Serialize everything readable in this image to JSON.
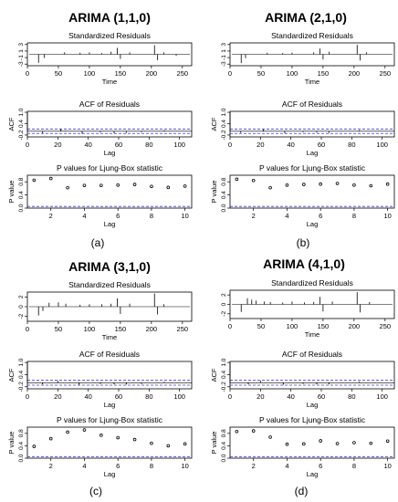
{
  "panels": [
    {
      "title": "ARIMA (1,1,0)",
      "caption": "(a)",
      "residuals": {
        "title": "Standardized Residuals",
        "xlabel": "Time",
        "xticks": [
          0,
          50,
          100,
          150,
          200,
          250
        ],
        "yticks": [
          "-3",
          "-1",
          "1",
          "3"
        ]
      },
      "acf": {
        "title": "ACF of Residuals",
        "ylabel": "ACF",
        "xlabel": "Lag",
        "xticks": [
          0,
          20,
          40,
          60,
          80,
          100
        ],
        "yticks": [
          "-0.2",
          "0.4",
          "1.0"
        ]
      },
      "ljung": {
        "title": "P values for Ljung-Box statistic",
        "ylabel": "P value",
        "xlabel": "Lag",
        "xticks": [
          2,
          4,
          6,
          8,
          10
        ],
        "yticks": [
          "0.0",
          "0.4",
          "0.8"
        ]
      }
    },
    {
      "title": "ARIMA (2,1,0)",
      "caption": "(b)",
      "residuals": {
        "title": "Standardized Residuals",
        "xlabel": "Time",
        "xticks": [
          0,
          50,
          100,
          150,
          200,
          250
        ],
        "yticks": [
          "-3",
          "-1",
          "1",
          "3"
        ]
      },
      "acf": {
        "title": "ACF of Residuals",
        "ylabel": "ACF",
        "xlabel": "Lag",
        "xticks": [
          0,
          20,
          40,
          60,
          80,
          100
        ],
        "yticks": [
          "-0.2",
          "0.4",
          "1.0"
        ]
      },
      "ljung": {
        "title": "P values for Ljung-Box statistic",
        "ylabel": "P value",
        "xlabel": "Lag",
        "xticks": [
          2,
          4,
          6,
          8,
          10
        ],
        "yticks": [
          "0.0",
          "0.4",
          "0.8"
        ]
      }
    },
    {
      "title": "ARIMA (3,1,0)",
      "caption": "(c)",
      "residuals": {
        "title": "Standardized Residuals",
        "xlabel": "Time",
        "xticks": [
          0,
          50,
          100,
          150,
          200,
          250
        ],
        "yticks": [
          "-2",
          "0",
          "2"
        ]
      },
      "acf": {
        "title": "ACF of Residuals",
        "ylabel": "ACF",
        "xlabel": "Lag",
        "xticks": [
          0,
          20,
          40,
          60,
          80,
          100
        ],
        "yticks": [
          "-0.2",
          "0.4",
          "1.0"
        ]
      },
      "ljung": {
        "title": "P values for Ljung-Box statistic",
        "ylabel": "P value",
        "xlabel": "Lag",
        "xticks": [
          2,
          4,
          6,
          8,
          10
        ],
        "yticks": [
          "0.0",
          "0.4",
          "0.8"
        ]
      }
    },
    {
      "title": "ARIMA (4,1,0)",
      "caption": "(d)",
      "residuals": {
        "title": "Standardized Residuals",
        "xlabel": "Time",
        "xticks": [
          0,
          50,
          100,
          150,
          200,
          250
        ],
        "yticks": [
          "-2",
          "0",
          "2"
        ]
      },
      "acf": {
        "title": "ACF of Residuals",
        "ylabel": "ACF",
        "xlabel": "Lag",
        "xticks": [
          0,
          20,
          40,
          60,
          80,
          100
        ],
        "yticks": [
          "-0.2",
          "0.4",
          "1.0"
        ]
      },
      "ljung": {
        "title": "P values for Ljung-Box statistic",
        "ylabel": "P value",
        "xlabel": "Lag",
        "xticks": [
          2,
          4,
          6,
          8,
          10
        ],
        "yticks": [
          "0.0",
          "0.4",
          "0.8"
        ]
      }
    }
  ],
  "colors": {
    "axis": "#000000",
    "bound": "#3b3bd6",
    "points": "#000000"
  },
  "chart_data": [
    {
      "type": "line",
      "model": "ARIMA (1,1,0)",
      "residuals": {
        "xlim": [
          0,
          265
        ],
        "ylim": [
          -3.5,
          3.5
        ],
        "spikes": [
          [
            18,
            -2.6
          ],
          [
            27,
            -1.1
          ],
          [
            60,
            0.6
          ],
          [
            85,
            0.5
          ],
          [
            100,
            0.6
          ],
          [
            120,
            0.4
          ],
          [
            135,
            0.8
          ],
          [
            145,
            2.0
          ],
          [
            150,
            -1.4
          ],
          [
            165,
            0.6
          ],
          [
            205,
            2.8
          ],
          [
            210,
            -1.8
          ],
          [
            220,
            0.6
          ],
          [
            240,
            -0.5
          ]
        ]
      },
      "acf": {
        "xlim": [
          0,
          108
        ],
        "ylim": [
          -0.3,
          1.05
        ],
        "conf": 0.12,
        "values": [
          [
            0,
            1.0
          ],
          [
            10,
            -0.1
          ],
          [
            22,
            0.12
          ],
          [
            25,
            0.03
          ],
          [
            36,
            -0.13
          ],
          [
            48,
            -0.06
          ],
          [
            57,
            -0.1
          ],
          [
            65,
            -0.09
          ],
          [
            75,
            -0.05
          ],
          [
            90,
            0.05
          ]
        ]
      },
      "ljung": {
        "xlim": [
          0.6,
          10.4
        ],
        "ylim": [
          0,
          1.0
        ],
        "bound": 0.05,
        "points": [
          [
            1,
            0.85
          ],
          [
            2,
            0.9
          ],
          [
            3,
            0.62
          ],
          [
            4,
            0.69
          ],
          [
            5,
            0.69
          ],
          [
            6,
            0.7
          ],
          [
            7,
            0.72
          ],
          [
            8,
            0.66
          ],
          [
            9,
            0.63
          ],
          [
            10,
            0.67
          ]
        ]
      }
    },
    {
      "type": "line",
      "model": "ARIMA (2,1,0)",
      "residuals": {
        "xlim": [
          0,
          265
        ],
        "ylim": [
          -3.5,
          3.5
        ],
        "spikes": [
          [
            18,
            -2.7
          ],
          [
            25,
            -1.2
          ],
          [
            60,
            0.5
          ],
          [
            85,
            0.4
          ],
          [
            100,
            0.5
          ],
          [
            135,
            0.6
          ],
          [
            145,
            1.8
          ],
          [
            150,
            -1.6
          ],
          [
            160,
            0.8
          ],
          [
            205,
            2.9
          ],
          [
            210,
            -1.9
          ],
          [
            220,
            0.6
          ]
        ]
      },
      "acf": {
        "xlim": [
          0,
          108
        ],
        "ylim": [
          -0.3,
          1.05
        ],
        "conf": 0.12,
        "values": [
          [
            0,
            1.0
          ],
          [
            7,
            -0.08
          ],
          [
            22,
            0.1
          ],
          [
            36,
            -0.1
          ],
          [
            48,
            -0.05
          ],
          [
            57,
            -0.07
          ],
          [
            65,
            -0.09
          ],
          [
            85,
            0.05
          ]
        ]
      },
      "ljung": {
        "xlim": [
          0.6,
          10.4
        ],
        "ylim": [
          0,
          1.0
        ],
        "bound": 0.05,
        "points": [
          [
            1,
            0.88
          ],
          [
            2,
            0.84
          ],
          [
            3,
            0.62
          ],
          [
            4,
            0.7
          ],
          [
            5,
            0.72
          ],
          [
            6,
            0.73
          ],
          [
            7,
            0.75
          ],
          [
            8,
            0.7
          ],
          [
            9,
            0.68
          ],
          [
            10,
            0.73
          ]
        ]
      }
    },
    {
      "type": "line",
      "model": "ARIMA (3,1,0)",
      "residuals": {
        "xlim": [
          0,
          265
        ],
        "ylim": [
          -3,
          3
        ],
        "spikes": [
          [
            18,
            -1.8
          ],
          [
            25,
            -0.9
          ],
          [
            35,
            0.8
          ],
          [
            50,
            0.9
          ],
          [
            62,
            0.6
          ],
          [
            85,
            0.4
          ],
          [
            100,
            0.5
          ],
          [
            120,
            0.5
          ],
          [
            135,
            0.6
          ],
          [
            145,
            1.7
          ],
          [
            150,
            -1.5
          ],
          [
            165,
            0.6
          ],
          [
            205,
            2.7
          ],
          [
            210,
            -1.6
          ],
          [
            220,
            0.5
          ]
        ]
      },
      "acf": {
        "xlim": [
          0,
          108
        ],
        "ylim": [
          -0.3,
          1.05
        ],
        "conf": 0.12,
        "values": [
          [
            0,
            1.0
          ],
          [
            10,
            -0.08
          ],
          [
            20,
            0.09
          ],
          [
            34,
            -0.1
          ],
          [
            48,
            -0.06
          ],
          [
            57,
            -0.08
          ],
          [
            65,
            -0.09
          ],
          [
            75,
            -0.06
          ],
          [
            90,
            0.05
          ]
        ]
      },
      "ljung": {
        "xlim": [
          0.6,
          10.4
        ],
        "ylim": [
          0,
          1.0
        ],
        "bound": 0.05,
        "points": [
          [
            1,
            0.38
          ],
          [
            2,
            0.63
          ],
          [
            3,
            0.84
          ],
          [
            4,
            0.91
          ],
          [
            5,
            0.74
          ],
          [
            6,
            0.66
          ],
          [
            7,
            0.6
          ],
          [
            8,
            0.48
          ],
          [
            9,
            0.4
          ],
          [
            10,
            0.46
          ]
        ]
      }
    },
    {
      "type": "line",
      "model": "ARIMA (4,1,0)",
      "residuals": {
        "xlim": [
          0,
          265
        ],
        "ylim": [
          -3,
          3
        ],
        "spikes": [
          [
            18,
            -1.6
          ],
          [
            28,
            1.3
          ],
          [
            35,
            1.0
          ],
          [
            42,
            0.8
          ],
          [
            55,
            0.6
          ],
          [
            65,
            0.5
          ],
          [
            85,
            0.4
          ],
          [
            100,
            0.6
          ],
          [
            120,
            0.4
          ],
          [
            135,
            0.5
          ],
          [
            145,
            1.6
          ],
          [
            150,
            -1.5
          ],
          [
            165,
            0.6
          ],
          [
            205,
            2.6
          ],
          [
            210,
            -1.7
          ],
          [
            225,
            0.5
          ]
        ]
      },
      "acf": {
        "xlim": [
          0,
          108
        ],
        "ylim": [
          -0.3,
          1.05
        ],
        "conf": 0.12,
        "values": [
          [
            0,
            1.0
          ],
          [
            12,
            -0.08
          ],
          [
            20,
            0.1
          ],
          [
            35,
            -0.1
          ],
          [
            48,
            -0.06
          ],
          [
            57,
            -0.08
          ],
          [
            65,
            -0.08
          ],
          [
            85,
            0.05
          ]
        ]
      },
      "ljung": {
        "xlim": [
          0.6,
          10.4
        ],
        "ylim": [
          0,
          1.0
        ],
        "bound": 0.05,
        "points": [
          [
            1,
            0.86
          ],
          [
            2,
            0.88
          ],
          [
            3,
            0.68
          ],
          [
            4,
            0.45
          ],
          [
            5,
            0.46
          ],
          [
            6,
            0.56
          ],
          [
            7,
            0.47
          ],
          [
            8,
            0.5
          ],
          [
            9,
            0.48
          ],
          [
            10,
            0.55
          ]
        ]
      }
    }
  ]
}
